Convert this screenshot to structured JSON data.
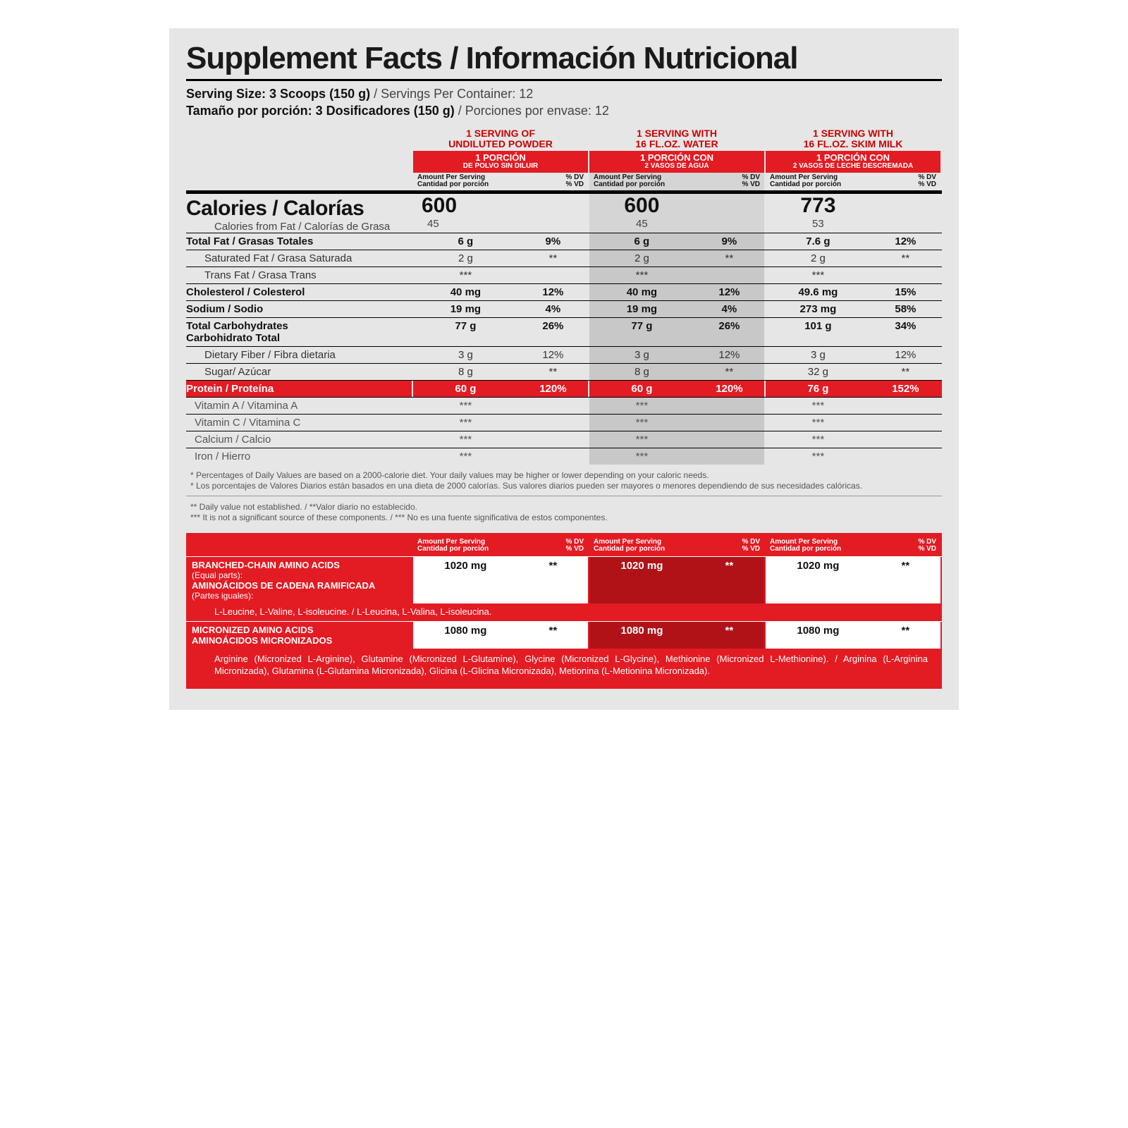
{
  "title": "Supplement Facts / Información Nutricional",
  "serving": {
    "en_bold": "Serving Size: 3 Scoops (150 g)",
    "en_rest": " / Servings Per Container: 12",
    "es_bold": "Tamaño por porción: 3 Dosificadores (150 g)",
    "es_rest": " / Porciones por envase: 12"
  },
  "colHeads": [
    {
      "en1": "1 SERVING OF",
      "en2": "UNDILUTED POWDER",
      "es1": "1 PORCIÓN",
      "es2": "DE POLVO SIN DILUIR"
    },
    {
      "en1": "1 SERVING WITH",
      "en2": "16 FL.OZ. WATER",
      "es1": "1 PORCIÓN CON",
      "es2": "2 VASOS DE AGUA"
    },
    {
      "en1": "1 SERVING WITH",
      "en2": "16 FL.OZ. SKIM MILK",
      "es1": "1 PORCIÓN CON",
      "es2": "2 VASOS DE LECHE DESCREMADA"
    }
  ],
  "subhead": {
    "l1": "Amount Per Serving",
    "l2": "Cantidad por porción",
    "r1": "% DV",
    "r2": "% VD"
  },
  "calories": {
    "label": "Calories / Calorías",
    "sublabel": "Calories from Fat / Calorías de Grasa",
    "vals": [
      "600",
      "600",
      "773"
    ],
    "subvals": [
      "45",
      "45",
      "53"
    ]
  },
  "rows": [
    {
      "type": "main",
      "label": "Total Fat / Grasas Totales",
      "a": [
        "6 g",
        "6 g",
        "7.6 g"
      ],
      "d": [
        "9%",
        "9%",
        "12%"
      ]
    },
    {
      "type": "sub",
      "label": "Saturated Fat / Grasa Saturada",
      "a": [
        "2 g",
        "2 g",
        "2 g"
      ],
      "d": [
        "**",
        "**",
        "**"
      ]
    },
    {
      "type": "sub",
      "label": "Trans Fat / Grasa Trans",
      "a": [
        "***",
        "***",
        "***"
      ],
      "d": [
        "",
        "",
        ""
      ]
    },
    {
      "type": "main",
      "label": "Cholesterol / Colesterol",
      "a": [
        "40 mg",
        "40 mg",
        "49.6 mg"
      ],
      "d": [
        "12%",
        "12%",
        "15%"
      ]
    },
    {
      "type": "main",
      "label": "Sodium / Sodio",
      "a": [
        "19 mg",
        "19 mg",
        "273 mg"
      ],
      "d": [
        "4%",
        "4%",
        "58%"
      ]
    },
    {
      "type": "main",
      "label": "Total Carbohydrates\nCarbohidrato Total",
      "a": [
        "77 g",
        "77 g",
        "101 g"
      ],
      "d": [
        "26%",
        "26%",
        "34%"
      ]
    },
    {
      "type": "sub",
      "label": "Dietary Fiber / Fibra dietaria",
      "a": [
        "3 g",
        "3 g",
        "3 g"
      ],
      "d": [
        "12%",
        "12%",
        "12%"
      ]
    },
    {
      "type": "sub",
      "label": "Sugar/ Azúcar",
      "a": [
        "8 g",
        "8 g",
        "32 g"
      ],
      "d": [
        "**",
        "**",
        "**"
      ]
    },
    {
      "type": "red",
      "label": "Protein / Proteína",
      "a": [
        "60 g",
        "60 g",
        "76 g"
      ],
      "d": [
        "120%",
        "120%",
        "152%"
      ]
    },
    {
      "type": "vit",
      "label": "Vitamin A / Vitamina A",
      "a": [
        "***",
        "***",
        "***"
      ],
      "d": [
        "",
        "",
        ""
      ]
    },
    {
      "type": "vit",
      "label": "Vitamin C / Vitamina C",
      "a": [
        "***",
        "***",
        "***"
      ],
      "d": [
        "",
        "",
        ""
      ]
    },
    {
      "type": "vit",
      "label": "Calcium / Calcio",
      "a": [
        "***",
        "***",
        "***"
      ],
      "d": [
        "",
        "",
        ""
      ]
    },
    {
      "type": "vit",
      "label": "Iron / Hierro",
      "a": [
        "***",
        "***",
        "***"
      ],
      "d": [
        "",
        "",
        ""
      ]
    }
  ],
  "foot1": "* Percentages of Daily Values are based on a 2000-calorie diet. Your daily values may be higher or lower depending on your caloric needs.\n* Los porcentajes de Valores Diarios están basados en una dieta de 2000 calorías. Sus valores diarios pueden ser mayores o menores dependiendo de sus necesidades calóricas.",
  "foot2": "** Daily value not established. / **Valor diario no establecido.\n*** It is not a significant source of these components. / *** No es una fuente significativa de estos componentes.",
  "aminoRows": [
    {
      "title": "BRANCHED-CHAIN AMINO ACIDS",
      "sub1": "(Equal parts):",
      "title2": "AMINOÁCIDOS DE CADENA RAMIFICADA",
      "sub2": "(Partes iguales):",
      "a": [
        "1020 mg",
        "1020 mg",
        "1020 mg"
      ],
      "d": [
        "**",
        "**",
        "**"
      ],
      "list": "L-Leucine, L-Valine, L-isoleucine. / L-Leucina, L-Valina, L-isoleucina."
    },
    {
      "title": "MICRONIZED AMINO ACIDS",
      "title2": "AMINOÁCIDOS MICRONIZADOS",
      "a": [
        "1080 mg",
        "1080 mg",
        "1080 mg"
      ],
      "d": [
        "**",
        "**",
        "**"
      ],
      "detail": "Arginine (Micronized L-Arginine), Glutamine (Micronized L-Glutamine), Glycine (Micronized L-Glycine), Methionine (Micronized L-Methionine). / Arginina (L-Arginina Micronizada), Glutamina (L-Glutamina Micronizada), Glicina (L-Glicina Micronizada), Metionina (L-Metionina Micronizada)."
    }
  ]
}
